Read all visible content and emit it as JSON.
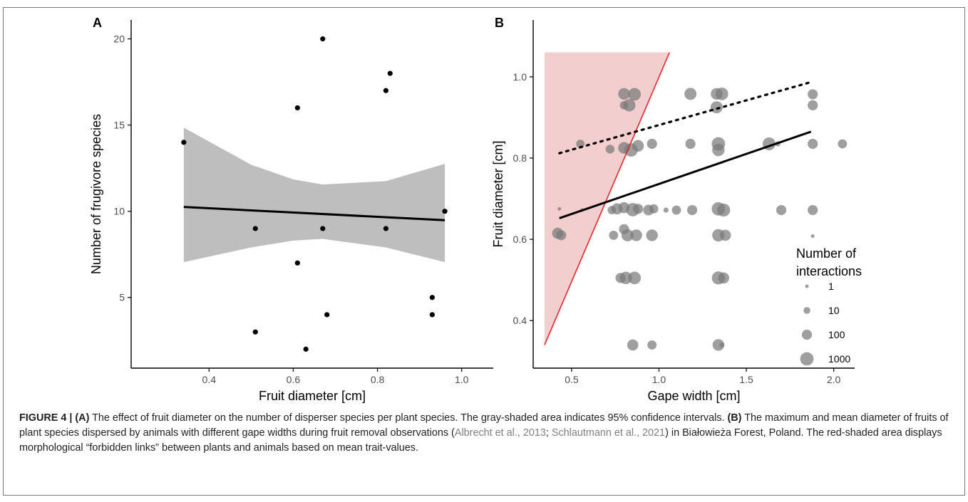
{
  "figure_panels": [
    {
      "panel": "A"
    },
    {
      "panel": "B"
    }
  ],
  "chart_data": [
    {
      "panel_label": "A",
      "type": "scatter",
      "xlabel": "Fruit diameter [cm]",
      "ylabel": "Number of frugivore species",
      "xlim": [
        0.215,
        1.075
      ],
      "ylim": [
        0.9,
        21.1
      ],
      "x_ticks": [
        0.4,
        0.6,
        0.8,
        1.0
      ],
      "x_tick_labels": [
        "0.4",
        "0.6",
        "0.8",
        "1.0"
      ],
      "y_ticks": [
        5,
        10,
        15,
        20
      ],
      "y_tick_labels": [
        "5",
        "10",
        "15",
        "20"
      ],
      "grid": false,
      "points": [
        {
          "x": 0.34,
          "y": 14
        },
        {
          "x": 0.51,
          "y": 9
        },
        {
          "x": 0.51,
          "y": 3
        },
        {
          "x": 0.61,
          "y": 16
        },
        {
          "x": 0.61,
          "y": 7
        },
        {
          "x": 0.63,
          "y": 2
        },
        {
          "x": 0.67,
          "y": 20
        },
        {
          "x": 0.67,
          "y": 9
        },
        {
          "x": 0.68,
          "y": 4
        },
        {
          "x": 0.82,
          "y": 17
        },
        {
          "x": 0.82,
          "y": 9
        },
        {
          "x": 0.83,
          "y": 18
        },
        {
          "x": 0.93,
          "y": 5
        },
        {
          "x": 0.93,
          "y": 4
        },
        {
          "x": 0.96,
          "y": 10
        }
      ],
      "regression": {
        "x": [
          0.34,
          0.96
        ],
        "y": [
          10.25,
          9.48
        ]
      },
      "confidence_band": {
        "label": "95% confidence interval",
        "x": [
          0.34,
          0.5,
          0.6,
          0.67,
          0.82,
          0.96
        ],
        "lower": [
          7.05,
          7.9,
          8.3,
          8.4,
          7.9,
          7.05
        ],
        "upper": [
          14.85,
          12.7,
          11.85,
          11.55,
          11.75,
          12.75
        ]
      },
      "colors": {
        "points": "#000000",
        "band": "#bebebe",
        "line": "#000000"
      }
    },
    {
      "panel_label": "B",
      "type": "scatter",
      "xlabel": "Gape width [cm]",
      "ylabel": "Fruit diameter [cm]",
      "xlim": [
        0.28,
        2.12
      ],
      "ylim": [
        0.283,
        1.14
      ],
      "x_ticks": [
        0.5,
        1.0,
        1.5,
        2.0
      ],
      "x_tick_labels": [
        "0.5",
        "1.0",
        "1.5",
        "2.0"
      ],
      "y_ticks": [
        0.4,
        0.6,
        0.8,
        1.0
      ],
      "y_tick_labels": [
        "0.4",
        "0.6",
        "0.8",
        "1.0"
      ],
      "grid": false,
      "forbidden_region": {
        "label": "forbidden links",
        "x_min": 0.345,
        "y_top": 1.06,
        "y_bottom": 0.34,
        "color": "#e8a5a5"
      },
      "diagonal_line": {
        "x": [
          0.345,
          1.06
        ],
        "y": [
          0.34,
          1.06
        ],
        "color": "#e0282b"
      },
      "max_fit": {
        "style": "dotted",
        "x": [
          0.43,
          1.87
        ],
        "y": [
          0.812,
          0.987
        ]
      },
      "mean_fit": {
        "style": "solid",
        "x": [
          0.43,
          1.87
        ],
        "y": [
          0.652,
          0.865
        ]
      },
      "legend": {
        "title_line1": "Number of",
        "title_line2": "interactions",
        "entries": [
          {
            "label": "1",
            "n": 1
          },
          {
            "label": "10",
            "n": 10
          },
          {
            "label": "100",
            "n": 100
          },
          {
            "label": "1000",
            "n": 1000
          }
        ],
        "placement": "bottom-right"
      },
      "points": [
        {
          "x": 0.42,
          "y": 0.615,
          "n": 200
        },
        {
          "x": 0.44,
          "y": 0.61,
          "n": 100
        },
        {
          "x": 0.43,
          "y": 0.675,
          "n": 1
        },
        {
          "x": 0.55,
          "y": 0.835,
          "n": 30
        },
        {
          "x": 0.56,
          "y": 0.672,
          "n": 1
        },
        {
          "x": 0.72,
          "y": 0.822,
          "n": 40
        },
        {
          "x": 0.73,
          "y": 0.672,
          "n": 30
        },
        {
          "x": 0.74,
          "y": 0.61,
          "n": 50
        },
        {
          "x": 0.76,
          "y": 0.675,
          "n": 200
        },
        {
          "x": 0.78,
          "y": 0.505,
          "n": 100
        },
        {
          "x": 0.8,
          "y": 0.958,
          "n": 300
        },
        {
          "x": 0.8,
          "y": 0.93,
          "n": 30
        },
        {
          "x": 0.8,
          "y": 0.825,
          "n": 300
        },
        {
          "x": 0.8,
          "y": 0.678,
          "n": 200
        },
        {
          "x": 0.8,
          "y": 0.625,
          "n": 100
        },
        {
          "x": 0.81,
          "y": 0.505,
          "n": 500
        },
        {
          "x": 0.82,
          "y": 0.61,
          "n": 400
        },
        {
          "x": 0.83,
          "y": 0.93,
          "n": 500
        },
        {
          "x": 0.84,
          "y": 0.82,
          "n": 1000
        },
        {
          "x": 0.85,
          "y": 0.673,
          "n": 1000
        },
        {
          "x": 0.85,
          "y": 0.34,
          "n": 200
        },
        {
          "x": 0.86,
          "y": 0.957,
          "n": 600
        },
        {
          "x": 0.86,
          "y": 0.505,
          "n": 600
        },
        {
          "x": 0.87,
          "y": 0.61,
          "n": 300
        },
        {
          "x": 0.88,
          "y": 0.83,
          "n": 300
        },
        {
          "x": 0.88,
          "y": 0.675,
          "n": 100
        },
        {
          "x": 0.94,
          "y": 0.672,
          "n": 150
        },
        {
          "x": 0.96,
          "y": 0.61,
          "n": 300
        },
        {
          "x": 0.96,
          "y": 0.835,
          "n": 100
        },
        {
          "x": 0.96,
          "y": 0.34,
          "n": 50
        },
        {
          "x": 0.97,
          "y": 0.675,
          "n": 50
        },
        {
          "x": 1.04,
          "y": 0.672,
          "n": 3
        },
        {
          "x": 1.1,
          "y": 0.672,
          "n": 50
        },
        {
          "x": 1.18,
          "y": 0.958,
          "n": 400
        },
        {
          "x": 1.18,
          "y": 0.835,
          "n": 100
        },
        {
          "x": 1.19,
          "y": 0.672,
          "n": 100
        },
        {
          "x": 1.33,
          "y": 0.958,
          "n": 300
        },
        {
          "x": 1.33,
          "y": 0.925,
          "n": 400
        },
        {
          "x": 1.34,
          "y": 0.835,
          "n": 1000
        },
        {
          "x": 1.34,
          "y": 0.82,
          "n": 500
        },
        {
          "x": 1.34,
          "y": 0.675,
          "n": 1000
        },
        {
          "x": 1.34,
          "y": 0.61,
          "n": 500
        },
        {
          "x": 1.34,
          "y": 0.505,
          "n": 800
        },
        {
          "x": 1.34,
          "y": 0.34,
          "n": 300
        },
        {
          "x": 1.36,
          "y": 0.958,
          "n": 600
        },
        {
          "x": 1.36,
          "y": 0.34,
          "n": 3
        },
        {
          "x": 1.37,
          "y": 0.672,
          "n": 800
        },
        {
          "x": 1.37,
          "y": 0.505,
          "n": 200
        },
        {
          "x": 1.38,
          "y": 0.61,
          "n": 200
        },
        {
          "x": 1.63,
          "y": 0.835,
          "n": 700
        },
        {
          "x": 1.68,
          "y": 0.835,
          "n": 3
        },
        {
          "x": 1.7,
          "y": 0.672,
          "n": 100
        },
        {
          "x": 1.88,
          "y": 0.957,
          "n": 100
        },
        {
          "x": 1.88,
          "y": 0.93,
          "n": 100
        },
        {
          "x": 1.88,
          "y": 0.835,
          "n": 100
        },
        {
          "x": 1.88,
          "y": 0.672,
          "n": 100
        },
        {
          "x": 1.88,
          "y": 0.608,
          "n": 1
        },
        {
          "x": 2.05,
          "y": 0.835,
          "n": 50
        }
      ],
      "colors": {
        "points": "#7a7a7a",
        "fit_line": "#000000",
        "shading": "#e8a5a5",
        "boundary": "#e0282b"
      }
    }
  ],
  "caption": {
    "label": "FIGURE 4 | ",
    "panel_a_tag": "(A)",
    "part_a": " The effect of fruit diameter on the number of disperser species per plant species. The gray-shaded area indicates 95% confidence intervals. ",
    "panel_b_tag": "(B)",
    "part_b": " The maximum and mean diameter of fruits of plant species dispersed by animals with different gape widths during fruit removal observations (",
    "ref1": "Albrecht et al., 2013",
    "sep": "; ",
    "ref2": "Schlautmann et al., 2021",
    "part_c": ") in Białowieża Forest, Poland. The red-shaded area displays morphological “forbidden links” between plants and animals based on mean trait-values."
  }
}
